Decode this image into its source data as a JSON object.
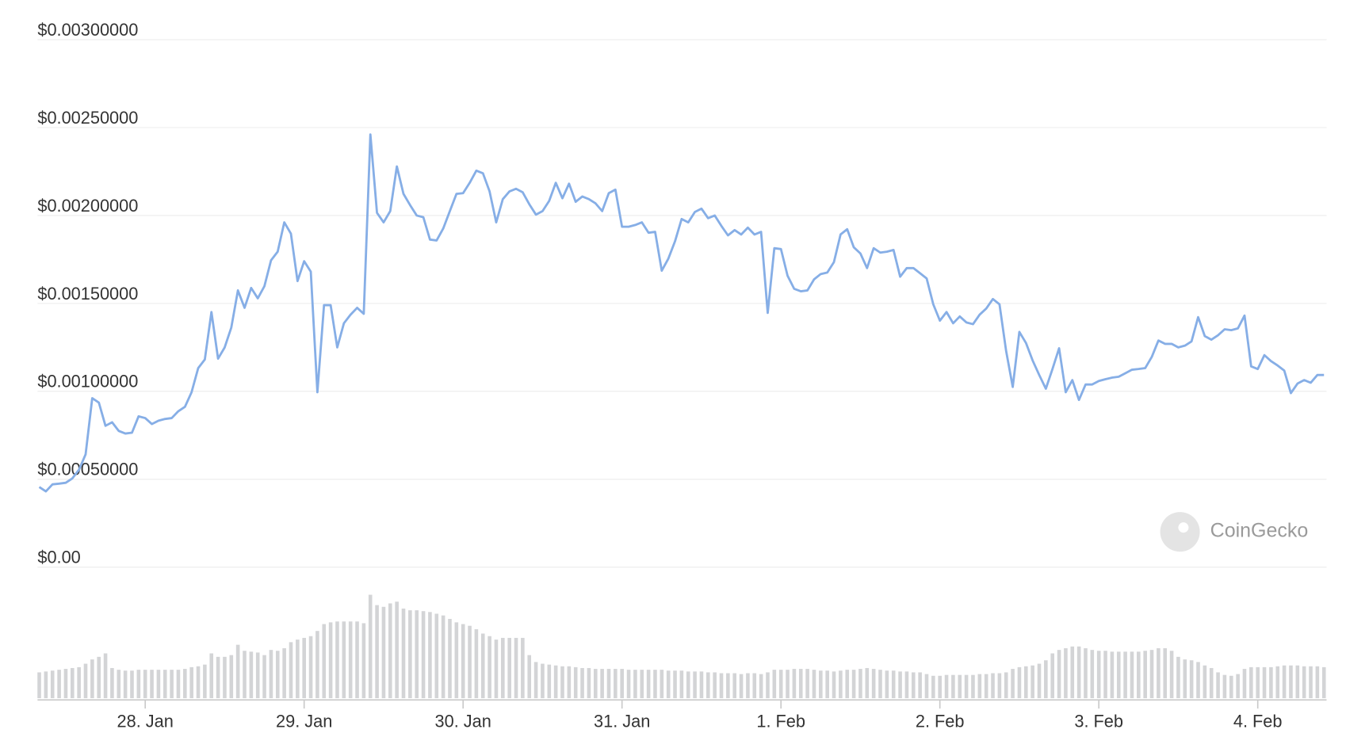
{
  "chart_data": {
    "type": "line",
    "categories": [
      null,
      null,
      null,
      null,
      null,
      null,
      null,
      null,
      null,
      null,
      null,
      null,
      null,
      null,
      null,
      null,
      "28. Jan",
      null,
      null,
      null,
      null,
      null,
      null,
      null,
      null,
      null,
      null,
      null,
      null,
      null,
      null,
      null,
      null,
      null,
      null,
      null,
      null,
      null,
      null,
      null,
      "29. Jan",
      null,
      null,
      null,
      null,
      null,
      null,
      null,
      null,
      null,
      null,
      null,
      null,
      null,
      null,
      null,
      null,
      null,
      null,
      null,
      null,
      null,
      null,
      null,
      "30. Jan",
      null,
      null,
      null,
      null,
      null,
      null,
      null,
      null,
      null,
      null,
      null,
      null,
      null,
      null,
      null,
      null,
      null,
      null,
      null,
      null,
      null,
      null,
      null,
      "31. Jan",
      null,
      null,
      null,
      null,
      null,
      null,
      null,
      null,
      null,
      null,
      null,
      null,
      null,
      null,
      null,
      null,
      null,
      null,
      null,
      null,
      null,
      null,
      null,
      "1. Feb",
      null,
      null,
      null,
      null,
      null,
      null,
      null,
      null,
      null,
      null,
      null,
      null,
      null,
      null,
      null,
      null,
      null,
      null,
      null,
      null,
      null,
      null,
      null,
      "2. Feb",
      null,
      null,
      null,
      null,
      null,
      null,
      null,
      null,
      null,
      null,
      null,
      null,
      null,
      null,
      null,
      null,
      null,
      null,
      null,
      null,
      null,
      null,
      null,
      "3. Feb",
      null,
      null,
      null,
      null,
      null,
      null,
      null,
      null,
      null,
      null,
      null,
      null,
      null,
      null,
      null,
      null,
      null,
      null,
      null,
      null,
      null,
      null,
      null,
      "4. Feb",
      null,
      null,
      null,
      null,
      null,
      null,
      null,
      null,
      null,
      null
    ],
    "series": [
      {
        "color": "#86aee6",
        "values": [
          0.000456,
          0.000431,
          0.000471,
          0.000475,
          0.00048,
          0.000505,
          0.000554,
          0.000642,
          0.000961,
          0.000936,
          0.000804,
          0.000824,
          0.000775,
          0.00076,
          0.000765,
          0.000858,
          0.000848,
          0.000814,
          0.000833,
          0.000843,
          0.000848,
          0.000887,
          0.000912,
          0.000995,
          0.001132,
          0.001181,
          0.001451,
          0.001186,
          0.00125,
          0.001363,
          0.001574,
          0.001475,
          0.001588,
          0.001529,
          0.001598,
          0.001745,
          0.001794,
          0.001961,
          0.001897,
          0.001627,
          0.00174,
          0.001681,
          0.000995,
          0.00149,
          0.00149,
          0.00125,
          0.001387,
          0.001436,
          0.001475,
          0.001441,
          0.002461,
          0.002015,
          0.001961,
          0.002025,
          0.002279,
          0.002123,
          0.002059,
          0.002,
          0.00199,
          0.001863,
          0.001858,
          0.001926,
          0.002025,
          0.002123,
          0.002127,
          0.002186,
          0.002255,
          0.00224,
          0.002137,
          0.001961,
          0.002093,
          0.002137,
          0.002152,
          0.002132,
          0.002064,
          0.002005,
          0.002025,
          0.002083,
          0.002186,
          0.002098,
          0.002181,
          0.002078,
          0.002108,
          0.002093,
          0.002069,
          0.002025,
          0.002127,
          0.002147,
          0.001936,
          0.001936,
          0.001946,
          0.001961,
          0.001902,
          0.001907,
          0.001686,
          0.001755,
          0.001853,
          0.00198,
          0.001961,
          0.00202,
          0.002039,
          0.001985,
          0.002,
          0.001941,
          0.001887,
          0.001917,
          0.001892,
          0.001931,
          0.001892,
          0.001907,
          0.001446,
          0.001814,
          0.001809,
          0.001657,
          0.001583,
          0.001569,
          0.001574,
          0.001637,
          0.001667,
          0.001676,
          0.001735,
          0.001892,
          0.001922,
          0.001819,
          0.001784,
          0.001701,
          0.001814,
          0.001789,
          0.001794,
          0.001804,
          0.001652,
          0.001701,
          0.001701,
          0.001672,
          0.001642,
          0.001495,
          0.001402,
          0.001451,
          0.001387,
          0.001426,
          0.001392,
          0.001382,
          0.001436,
          0.001471,
          0.001525,
          0.001495,
          0.00123,
          0.001025,
          0.001338,
          0.001275,
          0.001176,
          0.001093,
          0.001015,
          0.001127,
          0.001245,
          0.000995,
          0.001064,
          0.000951,
          0.001039,
          0.001039,
          0.001059,
          0.001069,
          0.001078,
          0.001083,
          0.001103,
          0.001123,
          0.001127,
          0.001132,
          0.001196,
          0.001289,
          0.00127,
          0.00127,
          0.00125,
          0.00126,
          0.001284,
          0.001422,
          0.001314,
          0.001294,
          0.001319,
          0.001353,
          0.001348,
          0.001358,
          0.001431,
          0.001142,
          0.001127,
          0.001206,
          0.001172,
          0.001147,
          0.001118,
          0.00099,
          0.001044,
          0.001064,
          0.001049,
          0.001093,
          0.001093
        ]
      },
      {
        "type": "bar",
        "axis": "y2",
        "color": "#d3d4d6",
        "values": [
          30,
          31,
          32,
          33,
          34,
          35,
          36,
          40,
          45,
          48,
          52,
          35,
          33,
          32,
          32,
          33,
          33,
          33,
          33,
          33,
          33,
          33,
          34,
          36,
          37,
          39,
          52,
          48,
          48,
          50,
          62,
          55,
          54,
          53,
          50,
          56,
          55,
          58,
          65,
          68,
          70,
          72,
          78,
          86,
          88,
          89,
          89,
          89,
          89,
          87,
          120,
          108,
          106,
          110,
          112,
          104,
          102,
          102,
          101,
          100,
          98,
          96,
          92,
          88,
          86,
          84,
          80,
          75,
          72,
          68,
          70,
          70,
          70,
          70,
          50,
          42,
          40,
          39,
          38,
          37,
          37,
          36,
          35,
          35,
          34,
          34,
          34,
          34,
          34,
          33,
          33,
          33,
          33,
          33,
          33,
          32,
          32,
          32,
          31,
          31,
          31,
          30,
          30,
          29,
          29,
          29,
          28,
          29,
          29,
          28,
          30,
          33,
          33,
          33,
          34,
          34,
          34,
          33,
          32,
          32,
          31,
          32,
          33,
          33,
          34,
          35,
          34,
          33,
          32,
          32,
          31,
          31,
          30,
          30,
          28,
          26,
          26,
          27,
          27,
          27,
          27,
          27,
          28,
          28,
          29,
          29,
          30,
          34,
          36,
          37,
          38,
          40,
          44,
          52,
          56,
          58,
          60,
          60,
          58,
          56,
          55,
          55,
          54,
          54,
          54,
          54,
          54,
          55,
          56,
          58,
          58,
          55,
          48,
          45,
          44,
          42,
          38,
          35,
          30,
          27,
          26,
          28,
          34,
          36,
          36,
          36,
          36,
          37,
          38,
          38,
          38,
          37,
          37,
          37,
          36
        ]
      }
    ],
    "ylim": [
      0,
      0.003
    ],
    "yticks": [
      {
        "value": 0,
        "label": "$0.00"
      },
      {
        "value": 0.0005,
        "label": "$0.00050000"
      },
      {
        "value": 0.001,
        "label": "$0.00100000"
      },
      {
        "value": 0.0015,
        "label": "$0.00150000"
      },
      {
        "value": 0.002,
        "label": "$0.00200000"
      },
      {
        "value": 0.0025,
        "label": "$0.00250000"
      },
      {
        "value": 0.003,
        "label": "$0.00300000"
      }
    ],
    "y2lim": [
      0,
      150
    ],
    "grid": true,
    "watermark": "CoinGecko"
  }
}
